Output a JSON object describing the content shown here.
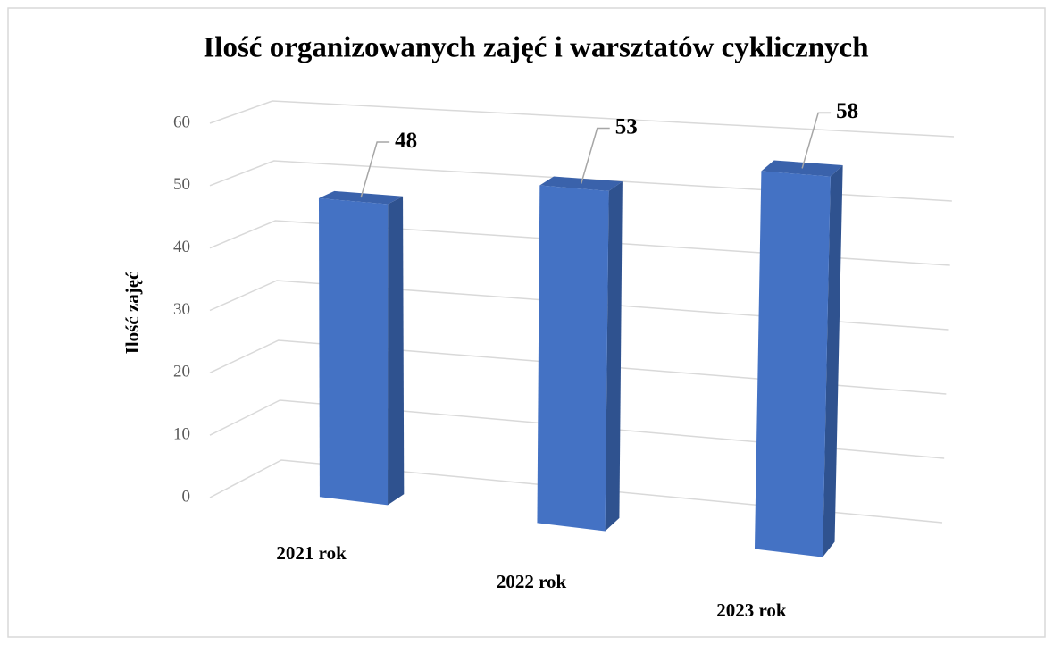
{
  "chart_data": {
    "type": "bar3d",
    "title": "Ilość organizowanych zajęć i warsztatów cyklicznych",
    "y_label": "Ilość zajęć",
    "categories": [
      "2021 rok",
      "2022 rok",
      "2023 rok"
    ],
    "values": [
      48,
      53,
      58
    ],
    "color": "#4472c4",
    "ylim": [
      0,
      60
    ],
    "yticks": [
      0,
      10,
      20,
      30,
      40,
      50,
      60
    ],
    "grid": true
  }
}
